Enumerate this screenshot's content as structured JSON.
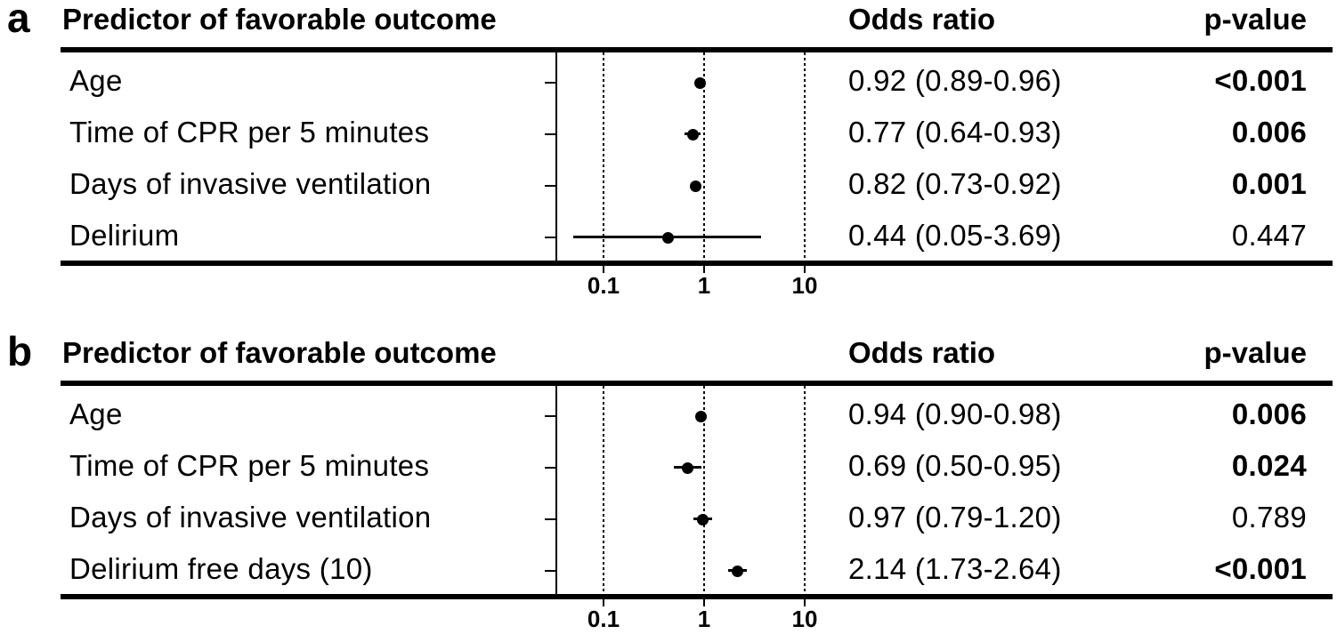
{
  "chart_data": [
    {
      "type": "forest",
      "panel_label": "a",
      "columns": {
        "predictor": "Predictor of favorable outcome",
        "odds_ratio": "Odds ratio",
        "p_value": "p-value"
      },
      "x_axis": {
        "scale": "log10",
        "ticks": [
          0.1,
          1,
          10
        ],
        "tick_labels": [
          "0.1",
          "1",
          "10"
        ],
        "reference_line": 1
      },
      "rows": [
        {
          "predictor": "Age",
          "or": 0.92,
          "ci_low": 0.89,
          "ci_high": 0.96,
          "or_text": "0.92 (0.89-0.96)",
          "p_value": "<0.001",
          "significant": true
        },
        {
          "predictor": "Time of CPR per 5 minutes",
          "or": 0.77,
          "ci_low": 0.64,
          "ci_high": 0.93,
          "or_text": "0.77 (0.64-0.93)",
          "p_value": "0.006",
          "significant": true
        },
        {
          "predictor": "Days of invasive ventilation",
          "or": 0.82,
          "ci_low": 0.73,
          "ci_high": 0.92,
          "or_text": "0.82 (0.73-0.92)",
          "p_value": "0.001",
          "significant": true
        },
        {
          "predictor": "Delirium",
          "or": 0.44,
          "ci_low": 0.05,
          "ci_high": 3.69,
          "or_text": "0.44 (0.05-3.69)",
          "p_value": "0.447",
          "significant": false
        }
      ]
    },
    {
      "type": "forest",
      "panel_label": "b",
      "columns": {
        "predictor": "Predictor of favorable outcome",
        "odds_ratio": "Odds ratio",
        "p_value": "p-value"
      },
      "x_axis": {
        "scale": "log10",
        "ticks": [
          0.1,
          1,
          10
        ],
        "tick_labels": [
          "0.1",
          "1",
          "10"
        ],
        "reference_line": 1
      },
      "rows": [
        {
          "predictor": "Age",
          "or": 0.94,
          "ci_low": 0.9,
          "ci_high": 0.98,
          "or_text": "0.94 (0.90-0.98)",
          "p_value": "0.006",
          "significant": true
        },
        {
          "predictor": "Time of CPR per 5 minutes",
          "or": 0.69,
          "ci_low": 0.5,
          "ci_high": 0.95,
          "or_text": "0.69 (0.50-0.95)",
          "p_value": "0.024",
          "significant": true
        },
        {
          "predictor": "Days of invasive ventilation",
          "or": 0.97,
          "ci_low": 0.79,
          "ci_high": 1.2,
          "or_text": "0.97 (0.79-1.20)",
          "p_value": "0.789",
          "significant": false
        },
        {
          "predictor": "Delirium free days (10)",
          "or": 2.14,
          "ci_low": 1.73,
          "ci_high": 2.64,
          "or_text": "2.14 (1.73-2.64)",
          "p_value": "<0.001",
          "significant": true
        }
      ]
    }
  ],
  "colors": {
    "ink": "#000000",
    "background": "#ffffff"
  }
}
